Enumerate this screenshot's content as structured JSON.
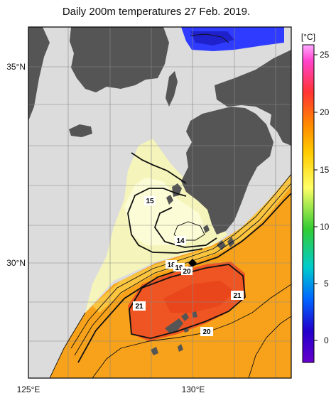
{
  "title": "Daily 200m temperatures 27 Feb. 2019.",
  "colorbar": {
    "unit": "[°C]",
    "ticks": [
      "25",
      "20",
      "15",
      "10",
      "5",
      "0"
    ],
    "stops": [
      "#ff66ff",
      "#ff3333",
      "#ff8800",
      "#ffcc00",
      "#ffff66",
      "#33cc33",
      "#00cccc",
      "#0066ff",
      "#2200cc",
      "#6600cc"
    ]
  },
  "axes": {
    "lat_labels": [
      "35°N",
      "30°N"
    ],
    "lon_labels": [
      "125°E",
      "130°E"
    ]
  },
  "contour_labels": [
    "15",
    "14",
    "18",
    "19",
    "20",
    "21",
    "21",
    "20"
  ],
  "colors": {
    "land": "#555555",
    "no_data": "#dcdcdc",
    "warm_core": "#ee5522",
    "warm": "#f7a21a",
    "cool_shelf": "#f5f5bb"
  }
}
